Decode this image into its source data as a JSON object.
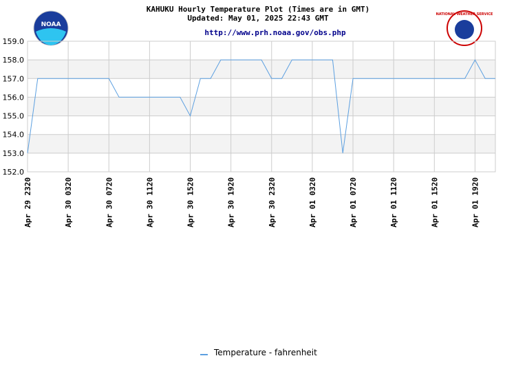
{
  "chart_data": {
    "type": "line",
    "title": "KAHUKU Hourly Temperature Plot (Times are in GMT)",
    "subtitle": "Updated: May 01, 2025 22:43 GMT",
    "url": "http://www.prh.noaa.gov/obs.php",
    "logos": {
      "left": "NOAA",
      "right": "NATIONAL WEATHER SERVICE"
    },
    "categories": [
      "Apr 29 2320",
      null,
      null,
      null,
      "Apr 30 0320",
      null,
      null,
      null,
      "Apr 30 0720",
      null,
      null,
      null,
      "Apr 30 1120",
      null,
      null,
      null,
      "Apr 30 1520",
      null,
      null,
      null,
      "Apr 30 1920",
      null,
      null,
      null,
      "Apr 30 2320",
      null,
      null,
      null,
      "Apr 01 0320",
      null,
      null,
      null,
      "Apr 01 0720",
      null,
      null,
      null,
      "Apr 01 1120",
      null,
      null,
      null,
      "Apr 01 1520",
      null,
      null,
      null,
      "Apr 01 1920",
      null,
      null
    ],
    "series": [
      {
        "name": "Temperature - fahrenheit",
        "color": "#5b9fe0",
        "values": [
          153,
          157,
          157,
          157,
          157,
          157,
          157,
          157,
          157,
          156,
          156,
          156,
          156,
          156,
          156,
          156,
          155,
          157,
          157,
          158,
          158,
          158,
          158,
          158,
          157,
          157,
          158,
          158,
          158,
          158,
          158,
          153,
          157,
          157,
          157,
          157,
          157,
          157,
          157,
          157,
          157,
          157,
          157,
          157,
          158,
          157,
          157
        ]
      }
    ],
    "ylim": [
      152,
      159
    ],
    "yticks": [
      {
        "value": 152,
        "label": "152.0"
      },
      {
        "value": 153,
        "label": "153.0"
      },
      {
        "value": 154,
        "label": "154.0"
      },
      {
        "value": 155,
        "label": "155.0"
      },
      {
        "value": 156,
        "label": "156.0"
      },
      {
        "value": 157,
        "label": "157.0"
      },
      {
        "value": 158,
        "label": "158.0"
      },
      {
        "value": 159,
        "label": "159.0"
      }
    ],
    "grid": true,
    "legend": "bottom"
  }
}
